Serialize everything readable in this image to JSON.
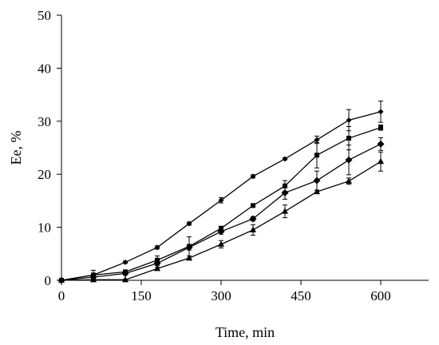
{
  "chart_data": {
    "type": "line",
    "title": "",
    "xlabel": "Time, min",
    "ylabel": "Ee, %",
    "xlim": [
      0,
      690
    ],
    "ylim": [
      0,
      50
    ],
    "xticks": [
      0,
      150,
      300,
      450,
      600
    ],
    "yticks": [
      0,
      10,
      20,
      30,
      40,
      50
    ],
    "grid": false,
    "legend": "none",
    "series": [
      {
        "marker": "diamond-small",
        "color": "#000000",
        "points": [
          {
            "x": 0,
            "y": 0,
            "err": 0
          },
          {
            "x": 60,
            "y": 1.0,
            "err": 0.3
          },
          {
            "x": 120,
            "y": 3.4,
            "err": 0.2
          },
          {
            "x": 180,
            "y": 6.2,
            "err": 0.3
          },
          {
            "x": 240,
            "y": 10.7,
            "err": 0.3
          },
          {
            "x": 300,
            "y": 15.1,
            "err": 0.5
          },
          {
            "x": 360,
            "y": 19.6,
            "err": 0.3
          },
          {
            "x": 420,
            "y": 22.9,
            "err": 0.2
          },
          {
            "x": 480,
            "y": 26.5,
            "err": 0.7
          },
          {
            "x": 540,
            "y": 30.2,
            "err": 2.0
          },
          {
            "x": 600,
            "y": 31.8,
            "err": 2.0
          }
        ]
      },
      {
        "marker": "square",
        "color": "#000000",
        "points": [
          {
            "x": 0,
            "y": 0,
            "err": 0
          },
          {
            "x": 60,
            "y": 1.0,
            "err": 0.9
          },
          {
            "x": 120,
            "y": 1.6,
            "err": 0.3
          },
          {
            "x": 180,
            "y": 3.8,
            "err": 0.8
          },
          {
            "x": 240,
            "y": 6.4,
            "err": 1.8
          },
          {
            "x": 300,
            "y": 9.8,
            "err": 0.4
          },
          {
            "x": 360,
            "y": 14.1,
            "err": 0.3
          },
          {
            "x": 420,
            "y": 17.8,
            "err": 1.0
          },
          {
            "x": 480,
            "y": 23.6,
            "err": 2.4
          },
          {
            "x": 540,
            "y": 26.8,
            "err": 2.2
          },
          {
            "x": 600,
            "y": 28.8,
            "err": 0.5
          }
        ]
      },
      {
        "marker": "diamond",
        "color": "#000000",
        "points": [
          {
            "x": 0,
            "y": 0,
            "err": 0
          },
          {
            "x": 60,
            "y": 0.6,
            "err": 0.3
          },
          {
            "x": 120,
            "y": 1.3,
            "err": 0.3
          },
          {
            "x": 180,
            "y": 3.2,
            "err": 0.4
          },
          {
            "x": 240,
            "y": 6.2,
            "err": 0.5
          },
          {
            "x": 300,
            "y": 9.2,
            "err": 0.5
          },
          {
            "x": 360,
            "y": 11.6,
            "err": 0.4
          },
          {
            "x": 420,
            "y": 16.5,
            "err": 1.2
          },
          {
            "x": 480,
            "y": 18.8,
            "err": 1.8
          },
          {
            "x": 540,
            "y": 22.7,
            "err": 2.8
          },
          {
            "x": 600,
            "y": 25.7,
            "err": 1.2
          }
        ]
      },
      {
        "marker": "triangle",
        "color": "#000000",
        "points": [
          {
            "x": 0,
            "y": 0,
            "err": 0
          },
          {
            "x": 60,
            "y": 0.1,
            "err": 0.1
          },
          {
            "x": 120,
            "y": 0.1,
            "err": 0.1
          },
          {
            "x": 180,
            "y": 2.2,
            "err": 0.3
          },
          {
            "x": 240,
            "y": 4.2,
            "err": 0.4
          },
          {
            "x": 300,
            "y": 6.8,
            "err": 0.7
          },
          {
            "x": 360,
            "y": 9.5,
            "err": 1.0
          },
          {
            "x": 420,
            "y": 13.0,
            "err": 1.2
          },
          {
            "x": 480,
            "y": 16.7,
            "err": 0.3
          },
          {
            "x": 540,
            "y": 18.7,
            "err": 0.6
          },
          {
            "x": 600,
            "y": 22.4,
            "err": 1.8
          }
        ]
      }
    ]
  }
}
